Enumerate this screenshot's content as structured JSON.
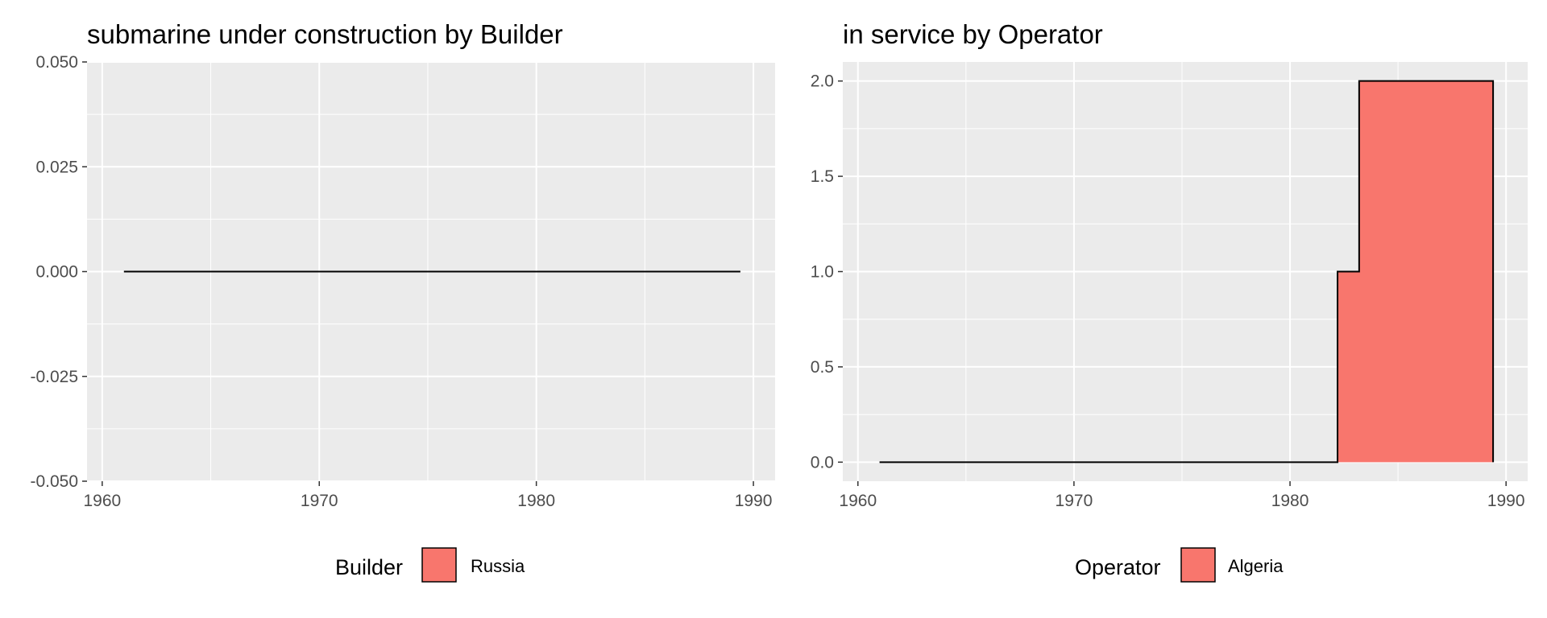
{
  "colors": {
    "panel_bg": "#ebebeb",
    "grid": "#ffffff",
    "fill": "#f8766d",
    "line": "#000000",
    "tick_text": "#4d4d4d"
  },
  "chart_data": [
    {
      "type": "area",
      "title": "submarine under construction by Builder",
      "xlim": [
        1959.3,
        1991
      ],
      "ylim": [
        -0.05,
        0.05
      ],
      "x_ticks": [
        1960,
        1970,
        1980,
        1990
      ],
      "x_tick_labels": [
        "1960",
        "1970",
        "1980",
        "1990"
      ],
      "y_ticks": [
        -0.05,
        -0.025,
        0,
        0.025,
        0.05
      ],
      "y_tick_labels": [
        "-0.050",
        "-0.025",
        "0.000",
        "0.025",
        "0.050"
      ],
      "grid": true,
      "legend": {
        "title": "Builder",
        "position": "bottom",
        "entries": [
          "Russia"
        ]
      },
      "series": [
        {
          "name": "Russia",
          "step": true,
          "x": [
            1961,
            1989.4
          ],
          "y": [
            0,
            0
          ]
        }
      ]
    },
    {
      "type": "area",
      "title": "in service by Operator",
      "xlim": [
        1959.3,
        1991
      ],
      "ylim": [
        -0.1,
        2.1
      ],
      "x_ticks": [
        1960,
        1970,
        1980,
        1990
      ],
      "x_tick_labels": [
        "1960",
        "1970",
        "1980",
        "1990"
      ],
      "y_ticks": [
        0,
        0.5,
        1,
        1.5,
        2
      ],
      "y_tick_labels": [
        "0.0",
        "0.5",
        "1.0",
        "1.5",
        "2.0"
      ],
      "grid": true,
      "legend": {
        "title": "Operator",
        "position": "bottom",
        "entries": [
          "Algeria"
        ]
      },
      "series": [
        {
          "name": "Algeria",
          "step": true,
          "x": [
            1961,
            1982.2,
            1983.2,
            1989.4
          ],
          "y": [
            0,
            1,
            2,
            0
          ]
        }
      ]
    }
  ]
}
